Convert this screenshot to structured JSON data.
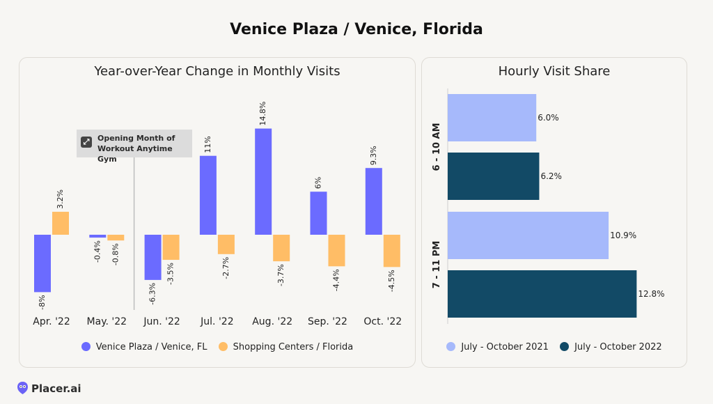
{
  "title": "Venice Plaza / Venice, Florida",
  "brand": {
    "name": "Placer.ai",
    "color": "#6b63f6"
  },
  "chart_data": [
    {
      "type": "bar",
      "title": "Year-over-Year Change in Monthly Visits",
      "categories": [
        "Apr. '22",
        "May. '22",
        "Jun. '22",
        "Jul. '22",
        "Aug. '22",
        "Sep. '22",
        "Oct. '22"
      ],
      "series": [
        {
          "name": "Venice Plaza / Venice, FL",
          "color": "#6b6bff",
          "values": [
            -8,
            -0.4,
            -6.3,
            11,
            14.8,
            6,
            9.3
          ],
          "labels": [
            "-8%",
            "-0.4%",
            "-6.3%",
            "11%",
            "14.8%",
            "6%",
            "9.3%"
          ]
        },
        {
          "name": "Shopping Centers / Florida",
          "color": "#ffbd66",
          "values": [
            3.2,
            -0.8,
            -3.5,
            -2.7,
            -3.7,
            -4.4,
            -4.5
          ],
          "labels": [
            "3.2%",
            "-0.8%",
            "-3.5%",
            "-2.7%",
            "-3.7%",
            "-4.4%",
            "-4.5%"
          ]
        }
      ],
      "annotation": {
        "category": "Jun. '22",
        "line1": "Opening Month of",
        "line2": "Workout Anytime Gym",
        "icon": "expand-arrows-icon"
      },
      "legend": "bottom",
      "grid": false
    },
    {
      "type": "bar",
      "orientation": "horizontal",
      "title": "Hourly Visit Share",
      "categories": [
        "6 - 10 AM",
        "7 - 11 PM"
      ],
      "series": [
        {
          "name": "July - October 2021",
          "color": "#a6b9fb",
          "values": [
            6.0,
            10.9
          ],
          "labels": [
            "6.0%",
            "10.9%"
          ]
        },
        {
          "name": "July - October 2022",
          "color": "#124a66",
          "values": [
            6.2,
            12.8
          ],
          "labels": [
            "6.2%",
            "12.8%"
          ]
        }
      ],
      "legend": "bottom",
      "grid": false
    }
  ]
}
